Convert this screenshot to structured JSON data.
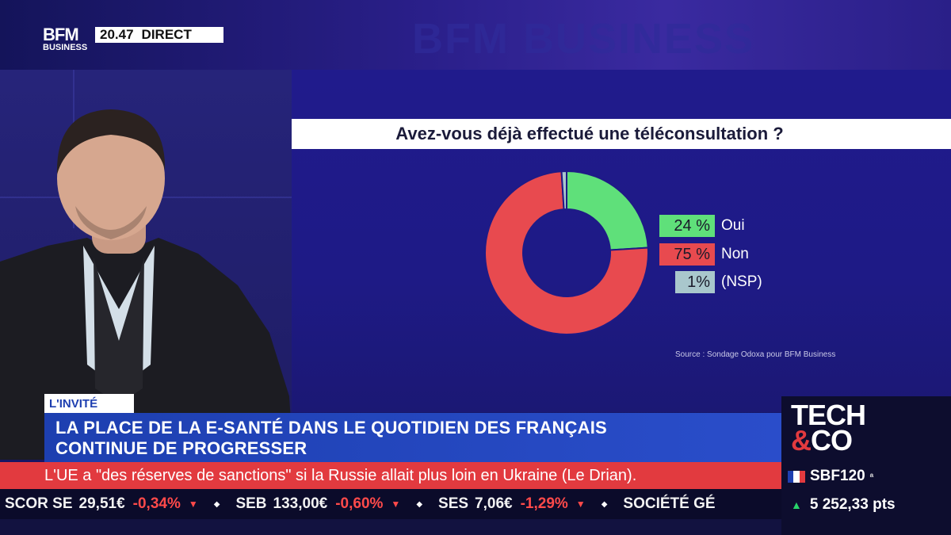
{
  "broadcast": {
    "logo_top": "BFM",
    "logo_bottom": "BUSINESS",
    "time": "20.47",
    "live_label": "DIRECT",
    "wall_text": "BFM BUSINESS"
  },
  "chart_data": {
    "type": "pie",
    "title": "Avez-vous déjà effectué une téléconsultation ?",
    "categories": [
      "Oui",
      "Non",
      "(NSP)"
    ],
    "values": [
      24,
      75,
      1
    ],
    "value_labels": [
      "24 %",
      "75 %",
      "1%"
    ],
    "colors": [
      "#5fe07a",
      "#e84a4f",
      "#a9c7cc"
    ],
    "hole": true,
    "legend_position": "right",
    "source": "Source : Sondage Odoxa pour BFM Business"
  },
  "lower_third": {
    "tag": "L'INVITÉ",
    "headline_line1": "LA PLACE DE LA E-SANTÉ DANS LE QUOTIDIEN DES FRANÇAIS",
    "headline_line2": "CONTINUE DE PROGRESSER"
  },
  "news_ticker": {
    "text": "L'UE a \"des réserves de sanctions\" si la Russie allait plus loin en Ukraine (Le Drian)."
  },
  "stock_ticker": [
    {
      "name": "SCOR SE",
      "value": "29,51€",
      "change": "-0,34%"
    },
    {
      "name": "SEB",
      "value": "133,00€",
      "change": "-0,60%"
    },
    {
      "name": "SES",
      "value": "7,06€",
      "change": "-1,29%"
    },
    {
      "name": "SOCIÉTÉ GÉ",
      "value": "",
      "change": ""
    }
  ],
  "side_box": {
    "logo_line1": "TECH",
    "logo_amp": "&",
    "logo_line2": "CO",
    "index_name": "SBF120",
    "index_value": "5 252,33 pts",
    "flag_colors": [
      "#1f3fb0",
      "#ffffff",
      "#e23a3f"
    ]
  }
}
